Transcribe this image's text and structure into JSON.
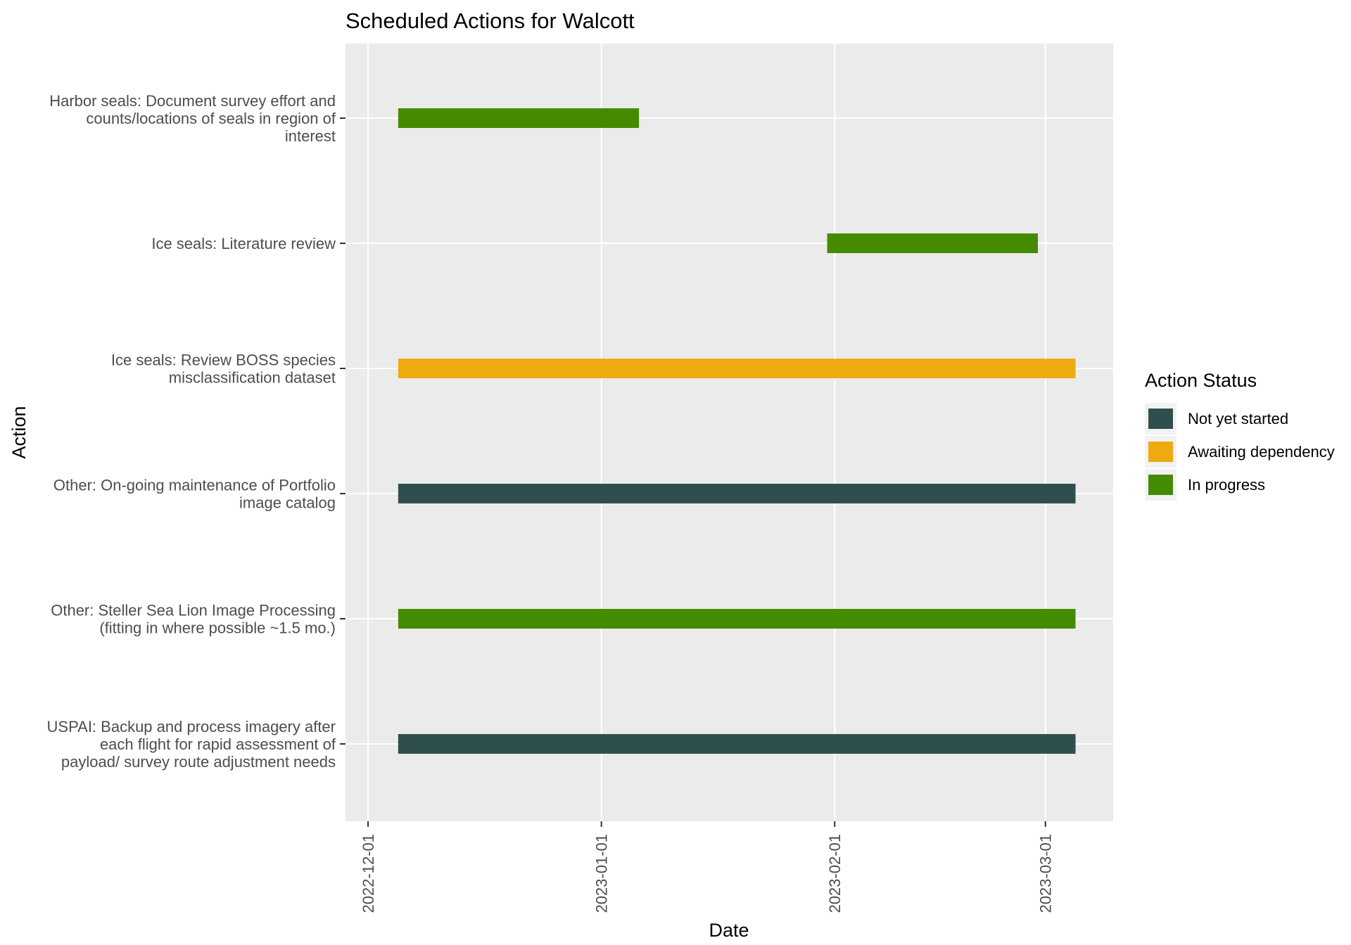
{
  "chart_data": {
    "type": "gantt",
    "title": "Scheduled Actions for Walcott",
    "xlabel": "Date",
    "ylabel": "Action",
    "x_ticks": [
      "2022-12-01",
      "2023-01-01",
      "2023-02-01",
      "2023-03-01"
    ],
    "xlim": [
      "2022-11-28",
      "2023-03-10"
    ],
    "grid": true,
    "legend_position": "right",
    "legend": {
      "title": "Action Status",
      "entries": [
        {
          "label": "Not yet started",
          "color": "#2F4F4F"
        },
        {
          "label": "Awaiting dependency",
          "color": "#EEAA11"
        },
        {
          "label": "In progress",
          "color": "#458B00"
        }
      ]
    },
    "tasks": [
      {
        "label": [
          "Harbor seals: Document survey effort and",
          "counts/locations of seals in region of",
          "interest"
        ],
        "start": "2022-12-05",
        "end": "2023-01-06",
        "status": "In progress"
      },
      {
        "label": [
          "Ice seals: Literature review"
        ],
        "start": "2023-01-31",
        "end": "2023-02-28",
        "status": "In progress"
      },
      {
        "label": [
          "Ice seals: Review BOSS species",
          "misclassification dataset"
        ],
        "start": "2022-12-05",
        "end": "2023-03-05",
        "status": "Awaiting dependency"
      },
      {
        "label": [
          "Other: On-going maintenance of Portfolio",
          "image catalog"
        ],
        "start": "2022-12-05",
        "end": "2023-03-05",
        "status": "Not yet started"
      },
      {
        "label": [
          "Other: Steller Sea Lion Image Processing",
          "(fitting in where possible ~1.5 mo.)"
        ],
        "start": "2022-12-05",
        "end": "2023-03-05",
        "status": "In progress"
      },
      {
        "label": [
          "USPAI: Backup and process imagery after",
          "each flight for rapid assessment of",
          "payload/ survey route adjustment needs"
        ],
        "start": "2022-12-05",
        "end": "2023-03-05",
        "status": "Not yet started"
      }
    ]
  }
}
